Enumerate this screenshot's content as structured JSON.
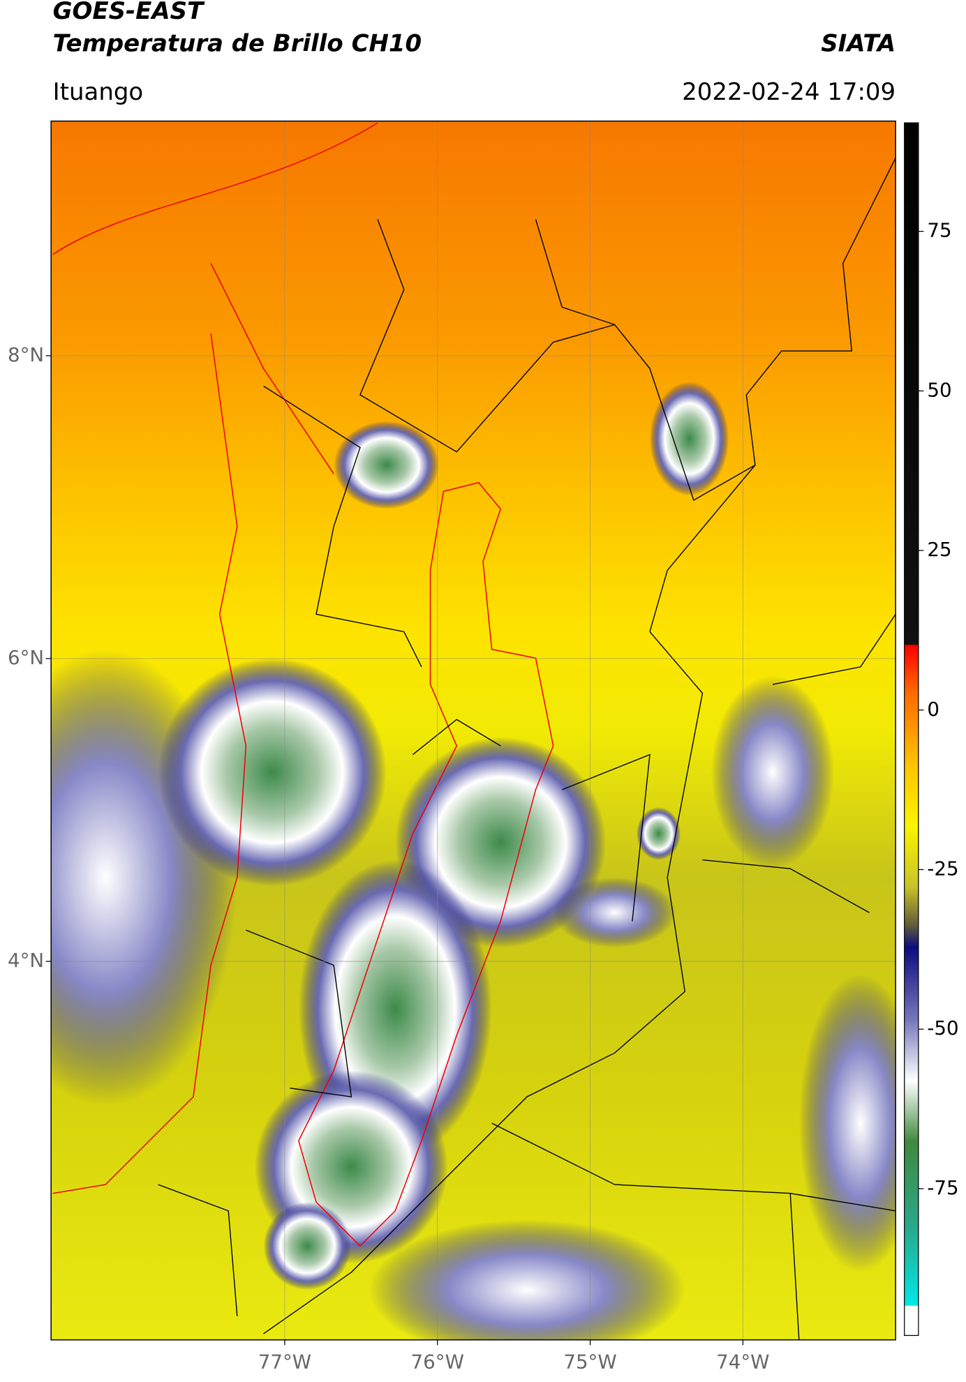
{
  "header": {
    "title": "GOES-EAST",
    "subtitle": "Temperatura de Brillo CH10",
    "brand": "SIATA",
    "location": "Ituango",
    "datetime": "2022-02-24 17:09"
  },
  "map": {
    "xlim": [
      -78.53,
      -73.0
    ],
    "ylim": [
      1.5,
      9.55
    ],
    "lon_ticks": [
      {
        "value": -77,
        "label": "77°W"
      },
      {
        "value": -76,
        "label": "76°W"
      },
      {
        "value": -75,
        "label": "75°W"
      },
      {
        "value": -74,
        "label": "74°W"
      }
    ],
    "lat_ticks": [
      {
        "value": 8,
        "label": "8°N"
      },
      {
        "value": 6,
        "label": "6°N"
      },
      {
        "value": 4,
        "label": "4°N"
      }
    ],
    "grid": true
  },
  "colorbar": {
    "lim": [
      -98,
      92
    ],
    "ticks": [
      75,
      50,
      25,
      0,
      -25,
      -50,
      -75
    ]
  }
}
